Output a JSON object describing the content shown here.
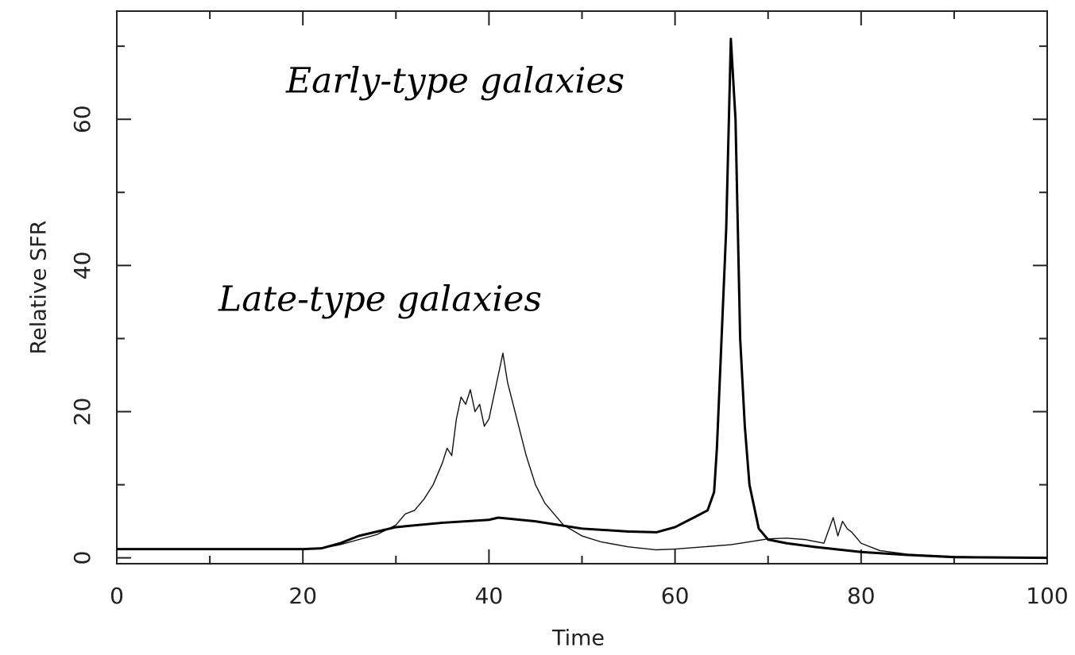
{
  "chart_data": {
    "type": "line",
    "xlabel": "Time",
    "ylabel": "Relative SFR",
    "xlim": [
      0,
      100
    ],
    "xticks": [
      0,
      20,
      40,
      60,
      80,
      100
    ],
    "xminor_ticks": [
      10,
      30,
      50,
      70,
      90
    ],
    "ylim": [
      -0.8,
      74.8
    ],
    "yticks": [
      0,
      20,
      40,
      60
    ],
    "yminor_ticks": [
      10,
      30,
      50,
      70
    ],
    "series": [
      {
        "name": "Late-type galaxies",
        "color": "#111111",
        "x": [
          0,
          10,
          20,
          22,
          24,
          26,
          28,
          30,
          31,
          32,
          33,
          34,
          35,
          35.5,
          36,
          36.5,
          37,
          37.5,
          38,
          38.5,
          39,
          39.5,
          40,
          40.5,
          41,
          41.5,
          42,
          43,
          44,
          45,
          46,
          48,
          50,
          52,
          55,
          58,
          60,
          63,
          66,
          68,
          70,
          72,
          74,
          76,
          77,
          77.5,
          78,
          78.5,
          79,
          80,
          82,
          85,
          90,
          95,
          100
        ],
        "values": [
          1.2,
          1.2,
          1.2,
          1.3,
          1.8,
          2.5,
          3.2,
          4.5,
          6,
          6.5,
          8,
          10,
          13,
          15,
          14,
          19,
          22,
          21,
          23,
          20,
          21,
          18,
          19,
          22,
          25,
          28,
          24,
          19,
          14,
          10,
          7.5,
          4.5,
          3,
          2.2,
          1.5,
          1.1,
          1.2,
          1.5,
          1.8,
          2.2,
          2.6,
          2.7,
          2.5,
          2,
          5.5,
          3,
          5,
          4,
          3.5,
          2,
          1,
          0.5,
          0.2,
          0.1,
          0
        ],
        "line_width": 1.4
      },
      {
        "name": "Early-type galaxies",
        "color": "#000000",
        "x": [
          0,
          10,
          20,
          22,
          24,
          26,
          28,
          30,
          35,
          40,
          41,
          45,
          50,
          55,
          58,
          60,
          62,
          63.5,
          64.2,
          64.5,
          65,
          65.5,
          66,
          66.5,
          67,
          67.5,
          68,
          69,
          70,
          72,
          75,
          80,
          85,
          90,
          100
        ],
        "values": [
          1.2,
          1.2,
          1.2,
          1.3,
          2,
          3,
          3.6,
          4.2,
          4.8,
          5.2,
          5.5,
          5,
          4,
          3.6,
          3.5,
          4.2,
          5.5,
          6.5,
          9,
          15,
          30,
          45,
          71,
          60,
          30,
          18,
          10,
          4,
          2.5,
          2,
          1.5,
          0.8,
          0.4,
          0.1,
          0
        ],
        "line_width": 3
      }
    ]
  }
}
